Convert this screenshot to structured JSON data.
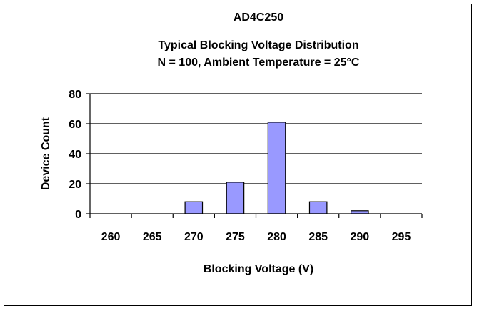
{
  "chart_data": {
    "type": "bar",
    "title": "AD4C250",
    "subtitle_lines": [
      "Typical Blocking Voltage Distribution",
      "N = 100, Ambient Temperature = 25°C"
    ],
    "xlabel": "Blocking Voltage (V)",
    "ylabel": "Device Count",
    "categories": [
      "260",
      "265",
      "270",
      "275",
      "280",
      "285",
      "290",
      "295"
    ],
    "values": [
      0,
      0,
      8,
      21,
      61,
      8,
      2,
      0
    ],
    "ylim": [
      0,
      80
    ],
    "yticks": [
      "0",
      "20",
      "40",
      "60",
      "80"
    ],
    "grid": true,
    "legend": "none",
    "colors": {
      "bar_fill": "#9999ff",
      "bar_stroke": "#000000",
      "grid": "#000000"
    }
  }
}
